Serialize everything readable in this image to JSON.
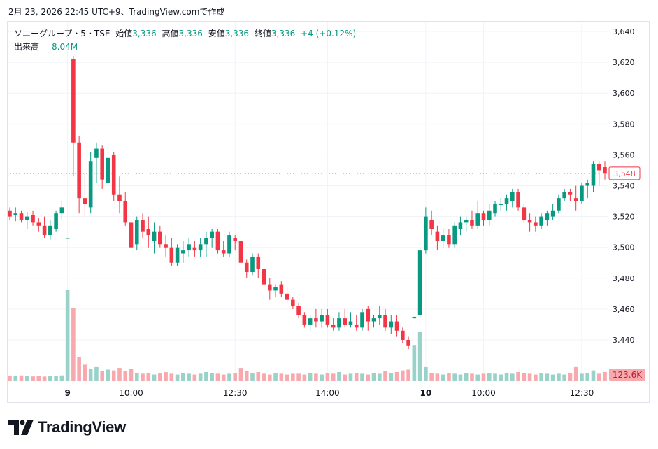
{
  "header": {
    "timestamp": "2月 23, 2026 22:45 UTC+9、TradingView.comで作成"
  },
  "legend": {
    "symbol": "ソニーグループ・5・TSE",
    "open_label": "始値",
    "open": "3,336",
    "high_label": "高値",
    "high": "3,336",
    "low_label": "安値",
    "low": "3,336",
    "close_label": "終値",
    "close": "3,336",
    "change": "+4 (+0.12%)",
    "volume_label": "出来高",
    "volume": "8.04M"
  },
  "price_badge": "3,548",
  "volume_badge": "123.6K",
  "brand": "TradingView",
  "colors": {
    "up": "#089981",
    "down": "#f23645",
    "up_vol": "#99d2c9",
    "down_vol": "#f7a9ae",
    "grid": "#f0f3fa",
    "text": "#131722"
  },
  "chart_data": {
    "type": "candlestick",
    "y_ticks": [
      "3,640",
      "3,620",
      "3,600",
      "3,580",
      "3,560",
      "3,540",
      "3,520",
      "3,500",
      "3,480",
      "3,460",
      "3,440"
    ],
    "y_range": [
      3432,
      3642
    ],
    "x_ticks": [
      {
        "label": "9",
        "index": 10,
        "bold": true
      },
      {
        "label": "10:00",
        "index": 21
      },
      {
        "label": "12:30",
        "index": 39
      },
      {
        "label": "14:00",
        "index": 55
      },
      {
        "label": "10",
        "index": 72,
        "bold": true
      },
      {
        "label": "10:00",
        "index": 82
      },
      {
        "label": "12:30",
        "index": 99
      }
    ],
    "candles": [
      [
        3524,
        3526,
        3518,
        3520
      ],
      [
        3521,
        3526,
        3517,
        3522
      ],
      [
        3522,
        3524,
        3516,
        3518
      ],
      [
        3518,
        3523,
        3512,
        3520
      ],
      [
        3521,
        3524,
        3514,
        3516
      ],
      [
        3516,
        3519,
        3510,
        3514
      ],
      [
        3514,
        3520,
        3506,
        3508
      ],
      [
        3508,
        3518,
        3505,
        3514
      ],
      [
        3512,
        3524,
        3510,
        3522
      ],
      [
        3522,
        3530,
        3518,
        3526
      ],
      [
        3506,
        3506,
        3506,
        3506
      ],
      [
        3622,
        3624,
        3546,
        3568
      ],
      [
        3568,
        3572,
        3522,
        3532
      ],
      [
        3532,
        3548,
        3520,
        3528
      ],
      [
        3526,
        3562,
        3522,
        3556
      ],
      [
        3558,
        3568,
        3542,
        3564
      ],
      [
        3564,
        3566,
        3538,
        3544
      ],
      [
        3542,
        3562,
        3540,
        3558
      ],
      [
        3560,
        3562,
        3530,
        3534
      ],
      [
        3534,
        3546,
        3522,
        3530
      ],
      [
        3530,
        3536,
        3514,
        3516
      ],
      [
        3516,
        3522,
        3492,
        3500
      ],
      [
        3502,
        3520,
        3498,
        3518
      ],
      [
        3518,
        3522,
        3506,
        3510
      ],
      [
        3512,
        3520,
        3500,
        3508
      ],
      [
        3504,
        3516,
        3496,
        3510
      ],
      [
        3510,
        3514,
        3500,
        3502
      ],
      [
        3502,
        3508,
        3494,
        3500
      ],
      [
        3500,
        3506,
        3488,
        3490
      ],
      [
        3490,
        3502,
        3488,
        3500
      ],
      [
        3496,
        3504,
        3490,
        3498
      ],
      [
        3498,
        3506,
        3494,
        3502
      ],
      [
        3500,
        3504,
        3494,
        3498
      ],
      [
        3498,
        3506,
        3494,
        3502
      ],
      [
        3502,
        3510,
        3494,
        3506
      ],
      [
        3506,
        3512,
        3500,
        3510
      ],
      [
        3510,
        3512,
        3496,
        3498
      ],
      [
        3498,
        3504,
        3494,
        3496
      ],
      [
        3496,
        3510,
        3494,
        3508
      ],
      [
        3506,
        3508,
        3498,
        3504
      ],
      [
        3504,
        3506,
        3486,
        3490
      ],
      [
        3490,
        3492,
        3480,
        3484
      ],
      [
        3484,
        3496,
        3482,
        3494
      ],
      [
        3494,
        3496,
        3480,
        3486
      ],
      [
        3486,
        3488,
        3474,
        3476
      ],
      [
        3476,
        3480,
        3466,
        3472
      ],
      [
        3472,
        3476,
        3468,
        3474
      ],
      [
        3476,
        3478,
        3468,
        3470
      ],
      [
        3470,
        3474,
        3464,
        3466
      ],
      [
        3466,
        3468,
        3460,
        3462
      ],
      [
        3462,
        3464,
        3454,
        3456
      ],
      [
        3456,
        3458,
        3448,
        3450
      ],
      [
        3450,
        3456,
        3446,
        3454
      ],
      [
        3454,
        3460,
        3448,
        3452
      ],
      [
        3452,
        3460,
        3448,
        3456
      ],
      [
        3456,
        3460,
        3448,
        3450
      ],
      [
        3450,
        3454,
        3446,
        3448
      ],
      [
        3448,
        3458,
        3446,
        3454
      ],
      [
        3454,
        3460,
        3448,
        3450
      ],
      [
        3450,
        3458,
        3448,
        3452
      ],
      [
        3450,
        3456,
        3446,
        3448
      ],
      [
        3448,
        3460,
        3446,
        3458
      ],
      [
        3460,
        3462,
        3446,
        3452
      ],
      [
        3452,
        3456,
        3448,
        3454
      ],
      [
        3454,
        3462,
        3450,
        3456
      ],
      [
        3456,
        3460,
        3446,
        3448
      ],
      [
        3448,
        3456,
        3444,
        3452
      ],
      [
        3452,
        3456,
        3442,
        3446
      ],
      [
        3446,
        3448,
        3438,
        3440
      ],
      [
        3440,
        3442,
        3434,
        3436
      ],
      [
        3454,
        3455,
        3454,
        3455
      ],
      [
        3456,
        3500,
        3454,
        3498
      ],
      [
        3498,
        3526,
        3496,
        3520
      ],
      [
        3518,
        3524,
        3508,
        3512
      ],
      [
        3510,
        3514,
        3498,
        3504
      ],
      [
        3504,
        3512,
        3500,
        3508
      ],
      [
        3508,
        3512,
        3500,
        3502
      ],
      [
        3502,
        3516,
        3500,
        3514
      ],
      [
        3512,
        3520,
        3508,
        3516
      ],
      [
        3516,
        3520,
        3510,
        3518
      ],
      [
        3518,
        3524,
        3512,
        3514
      ],
      [
        3514,
        3530,
        3512,
        3522
      ],
      [
        3522,
        3524,
        3514,
        3518
      ],
      [
        3518,
        3528,
        3514,
        3524
      ],
      [
        3522,
        3530,
        3520,
        3528
      ],
      [
        3528,
        3532,
        3524,
        3528
      ],
      [
        3528,
        3534,
        3524,
        3532
      ],
      [
        3530,
        3538,
        3526,
        3536
      ],
      [
        3536,
        3538,
        3524,
        3526
      ],
      [
        3526,
        3528,
        3516,
        3518
      ],
      [
        3518,
        3522,
        3510,
        3516
      ],
      [
        3516,
        3520,
        3510,
        3514
      ],
      [
        3514,
        3522,
        3512,
        3520
      ],
      [
        3518,
        3524,
        3514,
        3522
      ],
      [
        3520,
        3528,
        3518,
        3524
      ],
      [
        3524,
        3534,
        3522,
        3532
      ],
      [
        3532,
        3538,
        3530,
        3536
      ],
      [
        3536,
        3538,
        3530,
        3534
      ],
      [
        3532,
        3540,
        3524,
        3530
      ],
      [
        3530,
        3542,
        3528,
        3540
      ],
      [
        3540,
        3544,
        3532,
        3542
      ],
      [
        3540,
        3556,
        3536,
        3554
      ],
      [
        3554,
        3556,
        3540,
        3550
      ],
      [
        3552,
        3556,
        3544,
        3548
      ]
    ],
    "volume": [
      62,
      66,
      70,
      60,
      58,
      64,
      56,
      60,
      64,
      70,
      1100,
      880,
      290,
      200,
      150,
      170,
      120,
      140,
      130,
      160,
      120,
      150,
      100,
      90,
      100,
      80,
      100,
      110,
      90,
      80,
      100,
      90,
      80,
      90,
      110,
      100,
      90,
      80,
      90,
      100,
      160,
      120,
      100,
      110,
      90,
      80,
      100,
      90,
      80,
      90,
      90,
      80,
      100,
      90,
      80,
      100,
      90,
      110,
      80,
      90,
      100,
      90,
      80,
      100,
      90,
      120,
      100,
      110,
      130,
      140,
      430,
      600,
      170,
      100,
      90,
      80,
      100,
      90,
      80,
      100,
      90,
      80,
      90,
      100,
      90,
      80,
      100,
      90,
      110,
      100,
      90,
      80,
      100,
      90,
      80,
      90,
      80,
      100,
      170,
      90,
      100,
      130,
      90,
      110
    ]
  }
}
